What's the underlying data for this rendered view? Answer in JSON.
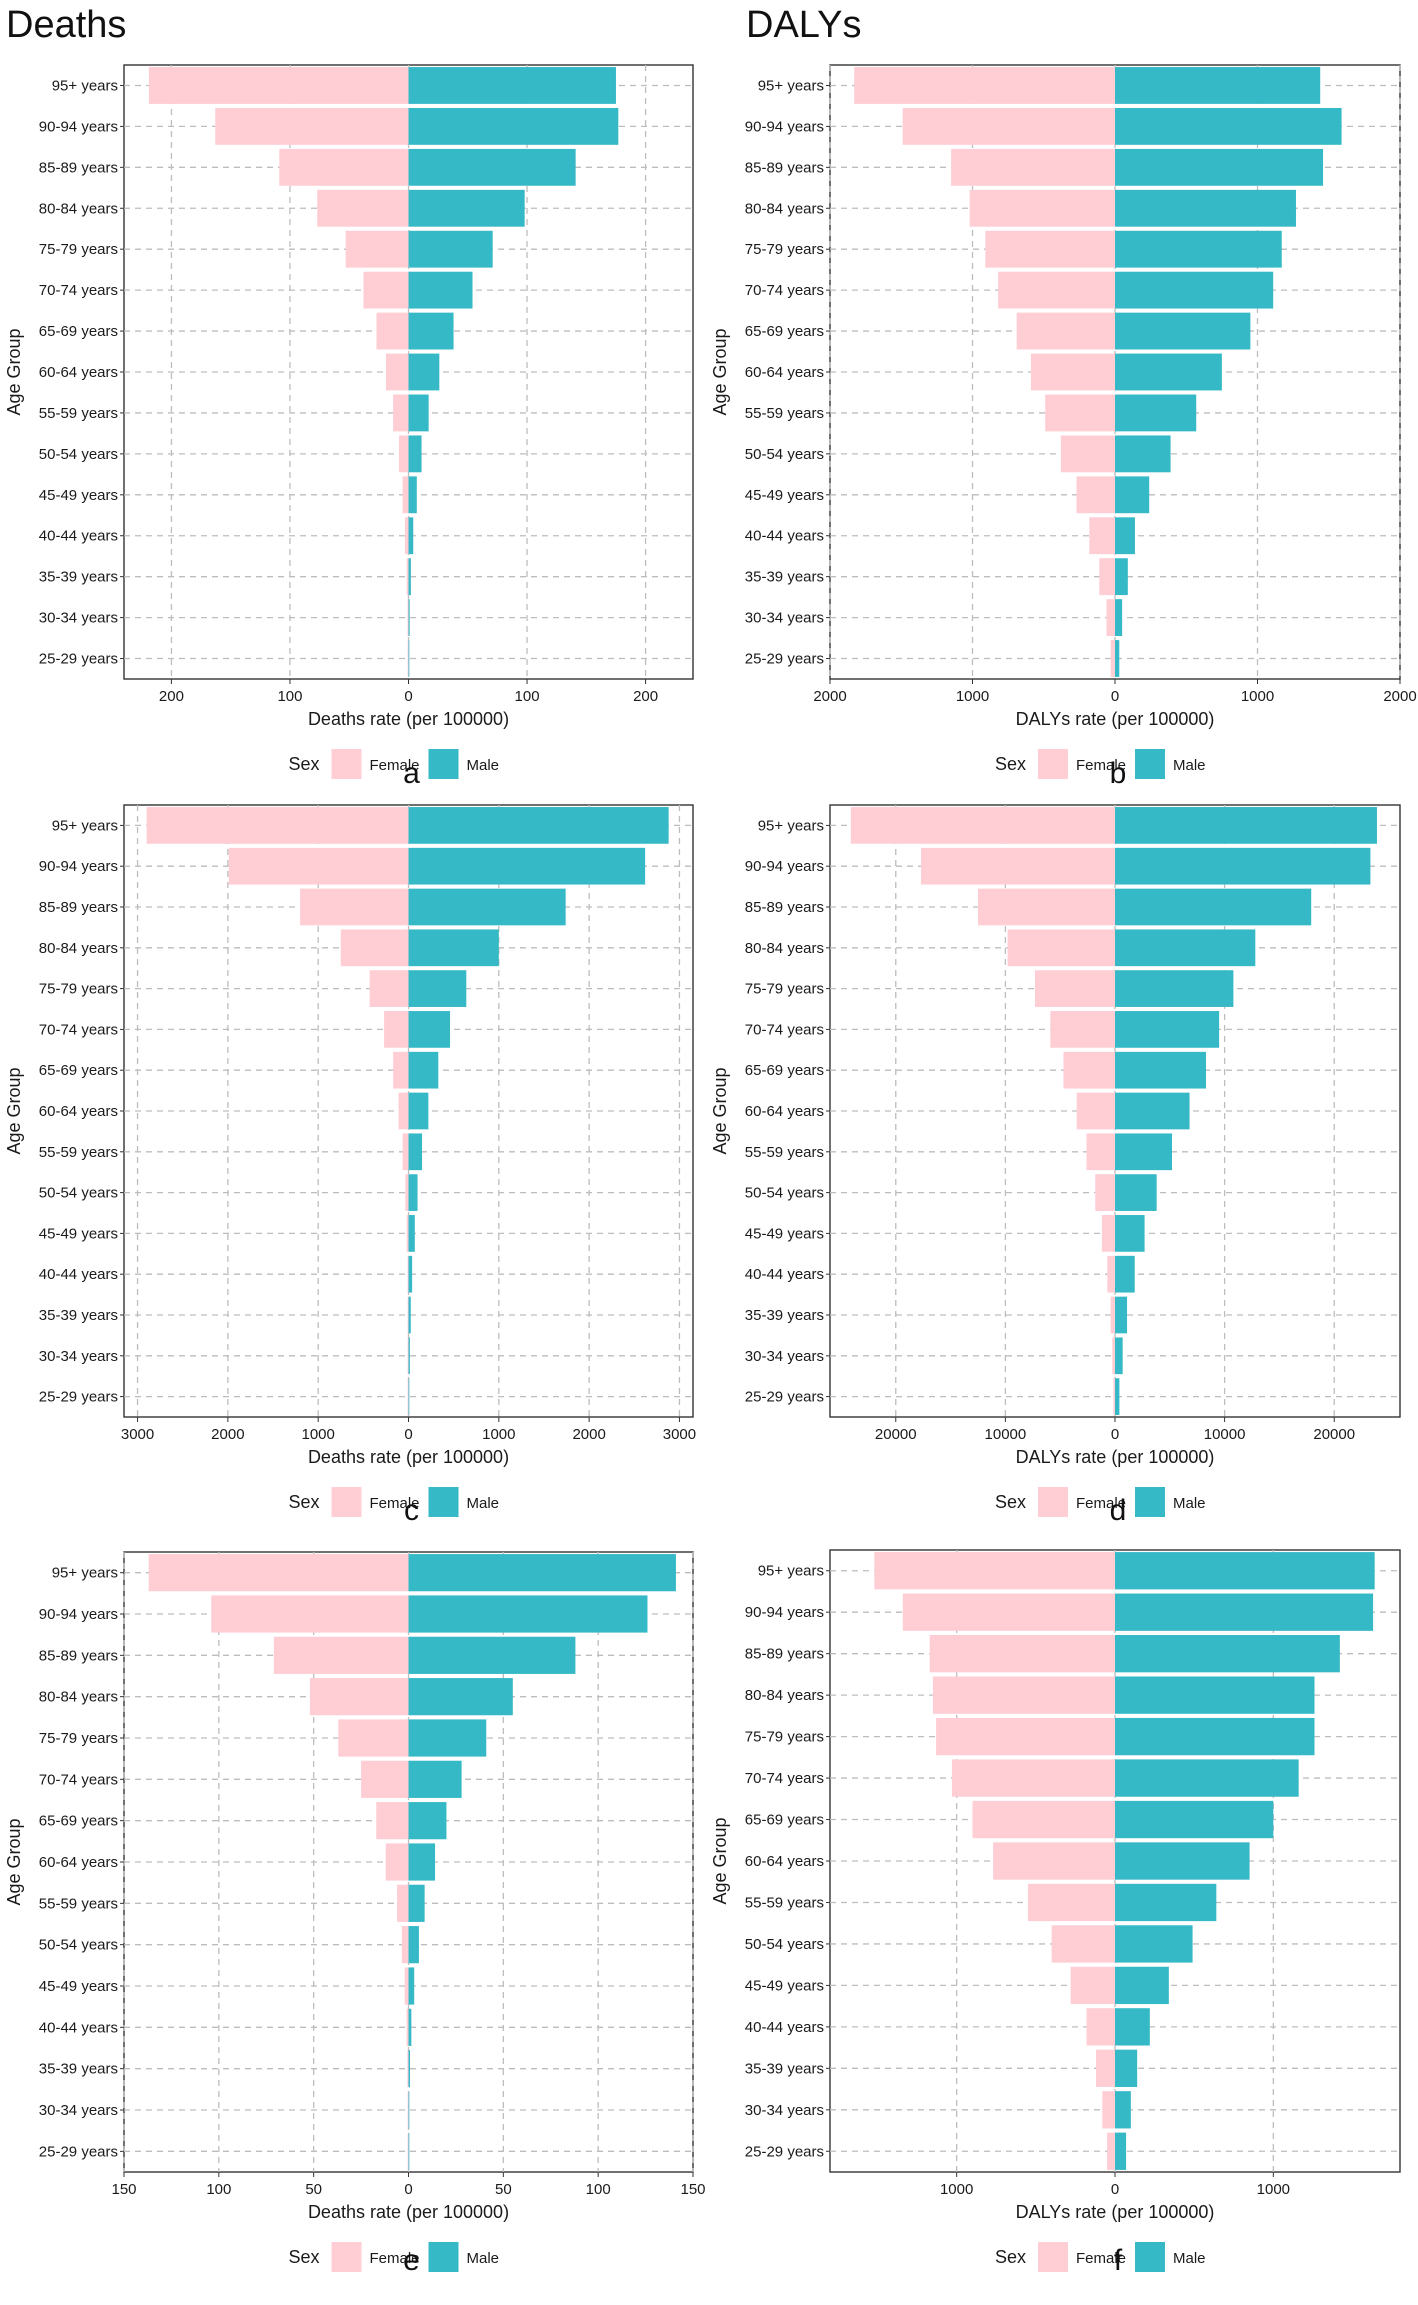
{
  "headers": {
    "left": "Deaths",
    "right": "DALYs"
  },
  "colors": {
    "female": "#FFCDD4",
    "male": "#35B9C6",
    "grid": "#BDBDBD",
    "panel_border": "#333333",
    "text": "#1a1a1a"
  },
  "legend": {
    "title": "Sex",
    "female": "Female",
    "male": "Male"
  },
  "y_axis_title": "Age Group",
  "chart_data": [
    {
      "type": "bar",
      "orientation": "horizontal-diverging",
      "panel": "a",
      "xlabel": "Deaths rate (per 100000)",
      "ylabel": "Age Group",
      "xlim": [
        -240,
        240
      ],
      "ticks": [
        -200,
        -100,
        0,
        100,
        200
      ],
      "tick_labels": [
        "200",
        "100",
        "0",
        "100",
        "200"
      ],
      "categories": [
        "95+ years",
        "90-94 years",
        "85-89 years",
        "80-84 years",
        "75-79 years",
        "70-74 years",
        "65-69 years",
        "60-64 years",
        "55-59 years",
        "50-54 years",
        "45-49 years",
        "40-44 years",
        "35-39 years",
        "30-34 years",
        "25-29 years"
      ],
      "series": [
        {
          "name": "Female",
          "values": [
            219,
            163,
            109,
            77,
            53,
            38,
            27,
            19,
            13,
            8,
            5,
            3,
            1.5,
            0.8,
            0.4
          ]
        },
        {
          "name": "Male",
          "values": [
            175,
            177,
            141,
            98,
            71,
            54,
            38,
            26,
            17,
            11,
            7,
            4,
            2,
            1,
            0.5
          ]
        }
      ]
    },
    {
      "type": "bar",
      "orientation": "horizontal-diverging",
      "panel": "b",
      "xlabel": "DALYs rate (per 100000)",
      "ylabel": "Age Group",
      "xlim": [
        -2000,
        2000
      ],
      "ticks": [
        -2000,
        -1000,
        0,
        1000,
        2000
      ],
      "tick_labels": [
        "2000",
        "1000",
        "0",
        "1000",
        "2000"
      ],
      "categories": [
        "95+ years",
        "90-94 years",
        "85-89 years",
        "80-84 years",
        "75-79 years",
        "70-74 years",
        "65-69 years",
        "60-64 years",
        "55-59 years",
        "50-54 years",
        "45-49 years",
        "40-44 years",
        "35-39 years",
        "30-34 years",
        "25-29 years"
      ],
      "series": [
        {
          "name": "Female",
          "values": [
            1830,
            1490,
            1150,
            1020,
            910,
            820,
            690,
            590,
            490,
            380,
            270,
            180,
            110,
            60,
            30
          ]
        },
        {
          "name": "Male",
          "values": [
            1440,
            1590,
            1460,
            1270,
            1170,
            1110,
            950,
            750,
            570,
            390,
            240,
            140,
            90,
            50,
            30
          ]
        }
      ]
    },
    {
      "type": "bar",
      "orientation": "horizontal-diverging",
      "panel": "c",
      "xlabel": "Deaths rate (per 100000)",
      "ylabel": "Age Group",
      "xlim": [
        -3150,
        3150
      ],
      "ticks": [
        -3000,
        -2000,
        -1000,
        0,
        1000,
        2000,
        3000
      ],
      "tick_labels": [
        "3000",
        "2000",
        "1000",
        "0",
        "1000",
        "2000",
        "3000"
      ],
      "categories": [
        "95+ years",
        "90-94 years",
        "85-89 years",
        "80-84 years",
        "75-79 years",
        "70-74 years",
        "65-69 years",
        "60-64 years",
        "55-59 years",
        "50-54 years",
        "45-49 years",
        "40-44 years",
        "35-39 years",
        "30-34 years",
        "25-29 years"
      ],
      "series": [
        {
          "name": "Female",
          "values": [
            2900,
            1990,
            1200,
            750,
            430,
            270,
            170,
            110,
            65,
            35,
            20,
            10,
            5,
            3,
            2
          ]
        },
        {
          "name": "Male",
          "values": [
            2880,
            2620,
            1740,
            1000,
            640,
            460,
            330,
            220,
            150,
            100,
            70,
            40,
            25,
            15,
            8
          ]
        }
      ]
    },
    {
      "type": "bar",
      "orientation": "horizontal-diverging",
      "panel": "d",
      "xlabel": "DALYs rate (per 100000)",
      "ylabel": "Age Group",
      "xlim": [
        -26000,
        26000
      ],
      "ticks": [
        -20000,
        -10000,
        0,
        10000,
        20000
      ],
      "tick_labels": [
        "20000",
        "10000",
        "0",
        "10000",
        "20000"
      ],
      "categories": [
        "95+ years",
        "90-94 years",
        "85-89 years",
        "80-84 years",
        "75-79 years",
        "70-74 years",
        "65-69 years",
        "60-64 years",
        "55-59 years",
        "50-54 years",
        "45-49 years",
        "40-44 years",
        "35-39 years",
        "30-34 years",
        "25-29 years"
      ],
      "series": [
        {
          "name": "Female",
          "values": [
            24100,
            17700,
            12500,
            9800,
            7300,
            5900,
            4700,
            3500,
            2600,
            1800,
            1200,
            700,
            400,
            250,
            150
          ]
        },
        {
          "name": "Male",
          "values": [
            23900,
            23300,
            17900,
            12800,
            10800,
            9500,
            8300,
            6800,
            5200,
            3800,
            2700,
            1800,
            1100,
            700,
            400
          ]
        }
      ]
    },
    {
      "type": "bar",
      "orientation": "horizontal-diverging",
      "panel": "e",
      "xlabel": "Deaths rate (per 100000)",
      "ylabel": "Age Group",
      "xlim": [
        -150,
        150
      ],
      "ticks": [
        -150,
        -100,
        -50,
        0,
        50,
        100,
        150
      ],
      "tick_labels": [
        "150",
        "100",
        "50",
        "0",
        "50",
        "100",
        "150"
      ],
      "categories": [
        "95+ years",
        "90-94 years",
        "85-89 years",
        "80-84 years",
        "75-79 years",
        "70-74 years",
        "65-69 years",
        "60-64 years",
        "55-59 years",
        "50-54 years",
        "45-49 years",
        "40-44 years",
        "35-39 years",
        "30-34 years",
        "25-29 years"
      ],
      "series": [
        {
          "name": "Female",
          "values": [
            137,
            104,
            71,
            52,
            37,
            25,
            17,
            12,
            6,
            3.5,
            2,
            1,
            0.6,
            0.3,
            0.2
          ]
        },
        {
          "name": "Male",
          "values": [
            141,
            126,
            88,
            55,
            41,
            28,
            20,
            14,
            8.5,
            5.5,
            3,
            1.5,
            0.8,
            0.4,
            0.2
          ]
        }
      ]
    },
    {
      "type": "bar",
      "orientation": "horizontal-diverging",
      "panel": "f",
      "xlabel": "DALYs rate (per 100000)",
      "ylabel": "Age Group",
      "xlim": [
        -1800,
        1800
      ],
      "ticks": [
        -1000,
        0,
        1000
      ],
      "tick_labels": [
        "1000",
        "0",
        "1000"
      ],
      "categories": [
        "95+ years",
        "90-94 years",
        "85-89 years",
        "80-84 years",
        "75-79 years",
        "70-74 years",
        "65-69 years",
        "60-64 years",
        "55-59 years",
        "50-54 years",
        "45-49 years",
        "40-44 years",
        "35-39 years",
        "30-34 years",
        "25-29 years"
      ],
      "series": [
        {
          "name": "Female",
          "values": [
            1520,
            1340,
            1170,
            1150,
            1130,
            1030,
            900,
            770,
            550,
            400,
            280,
            180,
            120,
            80,
            50
          ]
        },
        {
          "name": "Male",
          "values": [
            1640,
            1630,
            1420,
            1260,
            1260,
            1160,
            1000,
            850,
            640,
            490,
            340,
            220,
            140,
            100,
            70
          ]
        }
      ]
    }
  ]
}
